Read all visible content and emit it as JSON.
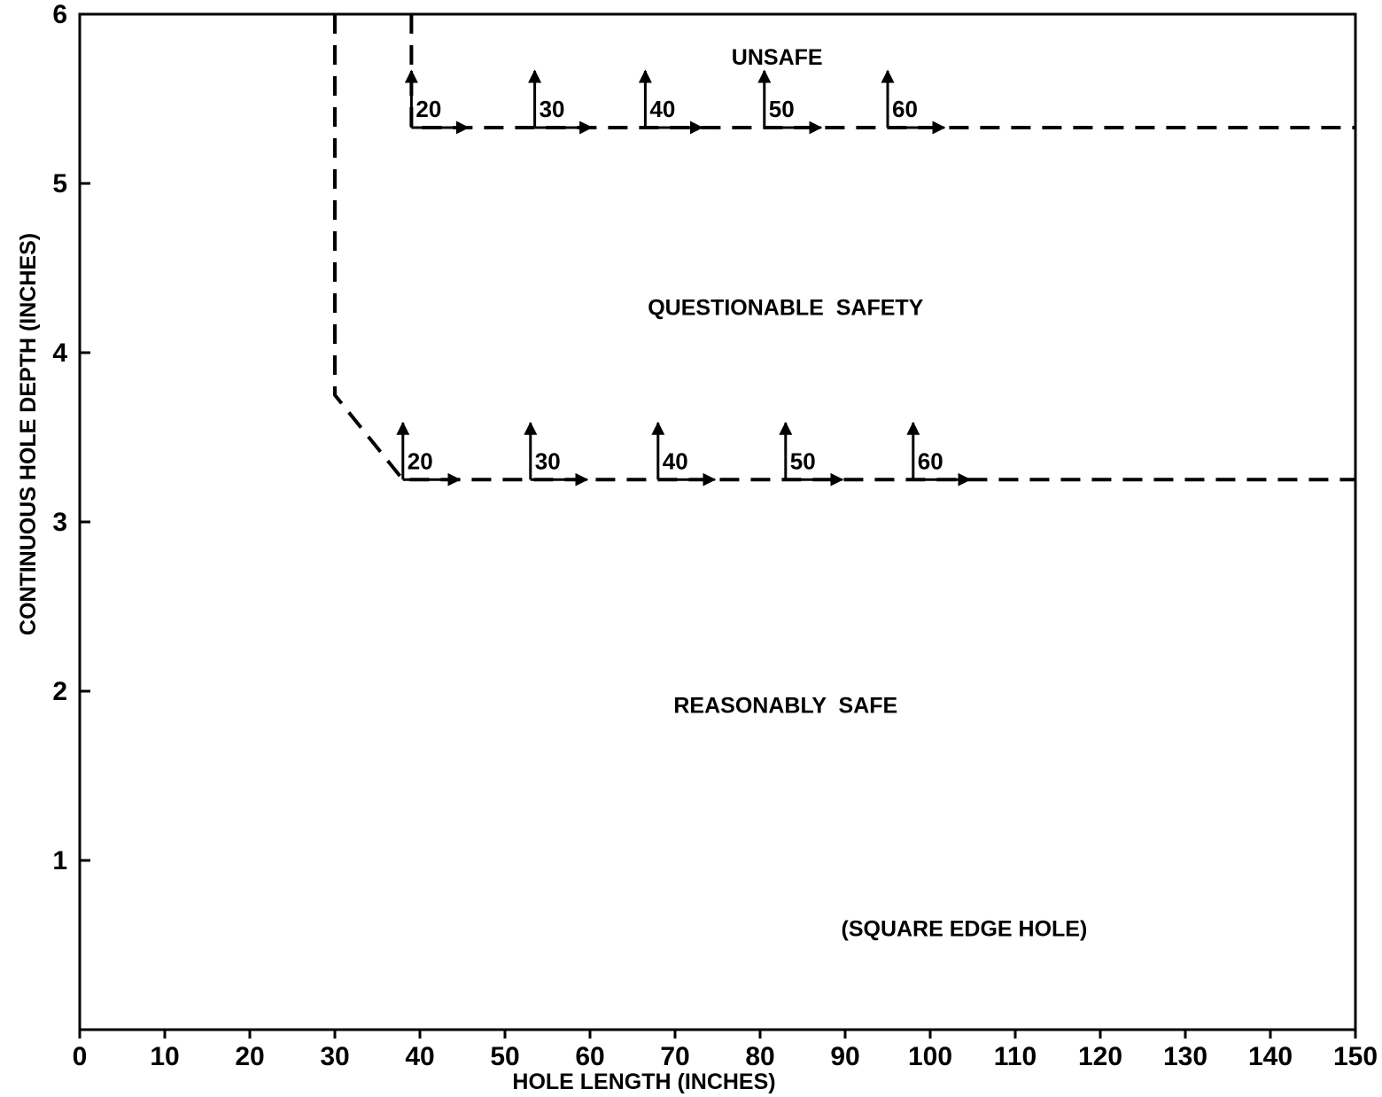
{
  "chart_data": {
    "type": "line",
    "title": "",
    "xlabel": "HOLE LENGTH (INCHES)",
    "ylabel": "CONTINUOUS HOLE DEPTH (INCHES)",
    "xlim": [
      0,
      150
    ],
    "ylim": [
      0,
      6
    ],
    "x_ticks": [
      "0",
      "10",
      "20",
      "30",
      "40",
      "50",
      "60",
      "70",
      "80",
      "90",
      "100",
      "110",
      "120",
      "130",
      "140",
      "150"
    ],
    "y_ticks": [
      "1",
      "2",
      "3",
      "4",
      "5",
      "6"
    ],
    "grid": false,
    "series": [
      {
        "line_style": "dashed",
        "x": [
          30,
          30,
          30,
          38,
          150
        ],
        "y": [
          6,
          3.75,
          3.75,
          3.25,
          3.25
        ]
      },
      {
        "line_style": "dashed",
        "x": [
          39,
          39,
          150
        ],
        "y": [
          6,
          5.33,
          5.33
        ]
      }
    ],
    "regions": [
      {
        "label": "UNSAFE",
        "x": 82,
        "y": 5.75
      },
      {
        "label": "QUESTIONABLE  SAFETY",
        "x": 83,
        "y": 4.27
      },
      {
        "label": "REASONABLY  SAFE",
        "x": 83,
        "y": 1.92
      }
    ],
    "annotations": [
      {
        "text": "(SQUARE EDGE HOLE)",
        "x": 104,
        "y": 0.6
      }
    ],
    "speed_markers": [
      {
        "label": "20",
        "x": 39,
        "y": 5.33
      },
      {
        "label": "30",
        "x": 53.5,
        "y": 5.33
      },
      {
        "label": "40",
        "x": 66.5,
        "y": 5.33
      },
      {
        "label": "50",
        "x": 80.5,
        "y": 5.33
      },
      {
        "label": "60",
        "x": 95,
        "y": 5.33
      },
      {
        "label": "20",
        "x": 38,
        "y": 3.25
      },
      {
        "label": "30",
        "x": 53,
        "y": 3.25
      },
      {
        "label": "40",
        "x": 68,
        "y": 3.25
      },
      {
        "label": "50",
        "x": 83,
        "y": 3.25
      },
      {
        "label": "60",
        "x": 98,
        "y": 3.25
      }
    ]
  }
}
